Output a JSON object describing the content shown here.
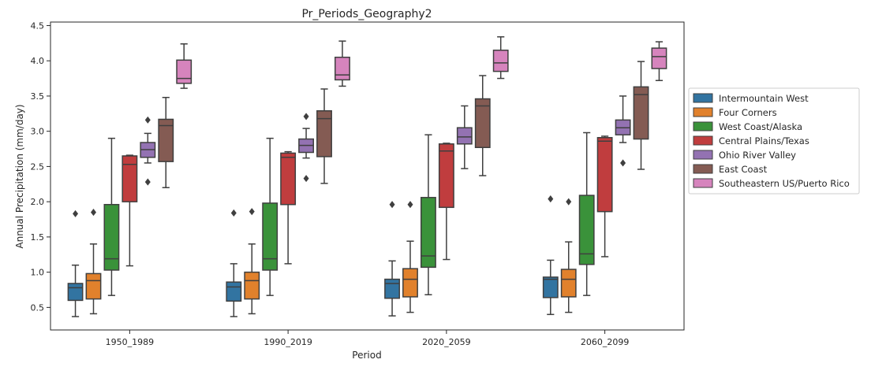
{
  "chart_data": {
    "type": "boxplot",
    "title": "Pr_Periods_Geography2",
    "xlabel": "Period",
    "ylabel": "Annual Precipitation (mm/day)",
    "ylim": [
      0.18,
      4.55
    ],
    "yticks": [
      0.5,
      1.0,
      1.5,
      2.0,
      2.5,
      3.0,
      3.5,
      4.0,
      4.5
    ],
    "ytick_labels": [
      "0.5",
      "1.0",
      "1.5",
      "2.0",
      "2.5",
      "3.0",
      "3.5",
      "4.0",
      "4.5"
    ],
    "grid": false,
    "legend_position": "outside-right",
    "categories": [
      "1950_1989",
      "1990_2019",
      "2020_2059",
      "2060_2099"
    ],
    "series": [
      {
        "name": "Intermountain West",
        "color": "#3274a1",
        "boxes": [
          {
            "min": 0.37,
            "q1": 0.6,
            "median": 0.78,
            "q3": 0.84,
            "max": 1.1,
            "outliers": [
              1.83
            ]
          },
          {
            "min": 0.37,
            "q1": 0.59,
            "median": 0.79,
            "q3": 0.86,
            "max": 1.12,
            "outliers": [
              1.84
            ]
          },
          {
            "min": 0.38,
            "q1": 0.63,
            "median": 0.84,
            "q3": 0.9,
            "max": 1.16,
            "outliers": [
              1.96
            ]
          },
          {
            "min": 0.4,
            "q1": 0.64,
            "median": 0.9,
            "q3": 0.93,
            "max": 1.17,
            "outliers": [
              2.04
            ]
          }
        ]
      },
      {
        "name": "Four Corners",
        "color": "#e1812c",
        "boxes": [
          {
            "min": 0.41,
            "q1": 0.62,
            "median": 0.88,
            "q3": 0.98,
            "max": 1.4,
            "outliers": [
              1.85
            ]
          },
          {
            "min": 0.41,
            "q1": 0.62,
            "median": 0.88,
            "q3": 1.0,
            "max": 1.4,
            "outliers": [
              1.86
            ]
          },
          {
            "min": 0.43,
            "q1": 0.65,
            "median": 0.9,
            "q3": 1.05,
            "max": 1.44,
            "outliers": [
              1.96
            ]
          },
          {
            "min": 0.43,
            "q1": 0.65,
            "median": 0.9,
            "q3": 1.04,
            "max": 1.43,
            "outliers": [
              2.0
            ]
          }
        ]
      },
      {
        "name": "West Coast/Alaska",
        "color": "#3a923a",
        "boxes": [
          {
            "min": 0.67,
            "q1": 1.03,
            "median": 1.19,
            "q3": 1.96,
            "max": 2.9,
            "outliers": []
          },
          {
            "min": 0.67,
            "q1": 1.03,
            "median": 1.19,
            "q3": 1.98,
            "max": 2.9,
            "outliers": []
          },
          {
            "min": 0.68,
            "q1": 1.07,
            "median": 1.23,
            "q3": 2.06,
            "max": 2.95,
            "outliers": []
          },
          {
            "min": 0.67,
            "q1": 1.11,
            "median": 1.26,
            "q3": 2.09,
            "max": 2.98,
            "outliers": []
          }
        ]
      },
      {
        "name": "Central Plains/Texas",
        "color": "#c03d3e",
        "boxes": [
          {
            "min": 1.09,
            "q1": 2.0,
            "median": 2.53,
            "q3": 2.65,
            "max": 2.66,
            "outliers": []
          },
          {
            "min": 1.12,
            "q1": 1.96,
            "median": 2.63,
            "q3": 2.69,
            "max": 2.71,
            "outliers": []
          },
          {
            "min": 1.18,
            "q1": 1.92,
            "median": 2.72,
            "q3": 2.82,
            "max": 2.83,
            "outliers": []
          },
          {
            "min": 1.22,
            "q1": 1.86,
            "median": 2.86,
            "q3": 2.91,
            "max": 2.93,
            "outliers": []
          }
        ]
      },
      {
        "name": "Ohio River Valley",
        "color": "#9372b2",
        "boxes": [
          {
            "min": 2.55,
            "q1": 2.63,
            "median": 2.74,
            "q3": 2.84,
            "max": 2.97,
            "outliers": [
              3.16,
              2.28
            ]
          },
          {
            "min": 2.62,
            "q1": 2.7,
            "median": 2.8,
            "q3": 2.89,
            "max": 3.04,
            "outliers": [
              3.21,
              2.33
            ]
          },
          {
            "min": 2.47,
            "q1": 2.82,
            "median": 2.92,
            "q3": 3.05,
            "max": 3.36,
            "outliers": []
          },
          {
            "min": 2.84,
            "q1": 2.95,
            "median": 3.05,
            "q3": 3.16,
            "max": 3.5,
            "outliers": [
              2.55
            ]
          }
        ]
      },
      {
        "name": "East Coast",
        "color": "#845b53",
        "boxes": [
          {
            "min": 2.2,
            "q1": 2.57,
            "median": 3.08,
            "q3": 3.17,
            "max": 3.48,
            "outliers": []
          },
          {
            "min": 2.26,
            "q1": 2.64,
            "median": 3.18,
            "q3": 3.29,
            "max": 3.6,
            "outliers": []
          },
          {
            "min": 2.37,
            "q1": 2.77,
            "median": 3.36,
            "q3": 3.46,
            "max": 3.79,
            "outliers": []
          },
          {
            "min": 2.46,
            "q1": 2.89,
            "median": 3.52,
            "q3": 3.63,
            "max": 3.99,
            "outliers": []
          }
        ]
      },
      {
        "name": "Southeastern US/Puerto Rico",
        "color": "#d684bd",
        "boxes": [
          {
            "min": 3.61,
            "q1": 3.68,
            "median": 3.75,
            "q3": 4.01,
            "max": 4.24,
            "outliers": []
          },
          {
            "min": 3.64,
            "q1": 3.73,
            "median": 3.8,
            "q3": 4.05,
            "max": 4.28,
            "outliers": []
          },
          {
            "min": 3.75,
            "q1": 3.85,
            "median": 3.97,
            "q3": 4.15,
            "max": 4.34,
            "outliers": []
          },
          {
            "min": 3.72,
            "q1": 3.89,
            "median": 4.06,
            "q3": 4.18,
            "max": 4.27,
            "outliers": []
          }
        ]
      }
    ]
  }
}
